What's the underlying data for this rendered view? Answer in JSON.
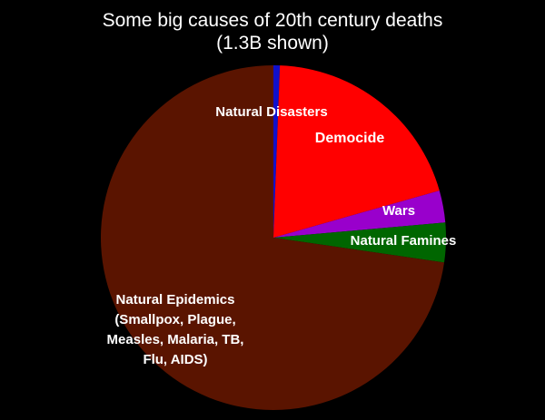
{
  "chart_data": {
    "type": "pie",
    "title": "Some big causes of 20th century deaths",
    "subtitle": "(1.3B shown)",
    "slices": [
      {
        "label": "Natural Disasters",
        "value": 0.6,
        "color": "#1010cc"
      },
      {
        "label": "Democide",
        "value": 20.0,
        "color": "#ff0000"
      },
      {
        "label": "Wars",
        "value": 3.0,
        "color": "#9900cc"
      },
      {
        "label": "Natural Famines",
        "value": 3.7,
        "color": "#006600"
      },
      {
        "label": "Natural Epidemics (Smallpox, Plague, Measles, Malaria, TB, Flu, AIDS)",
        "label_lines": [
          "Natural Epidemics",
          "(Smallpox, Plague,",
          "Measles, Malaria, TB,",
          "Flu, AIDS)"
        ],
        "value": 72.7,
        "color": "#5a1400"
      }
    ],
    "start": "12 o'clock",
    "direction": "clockwise",
    "legend": "none"
  }
}
